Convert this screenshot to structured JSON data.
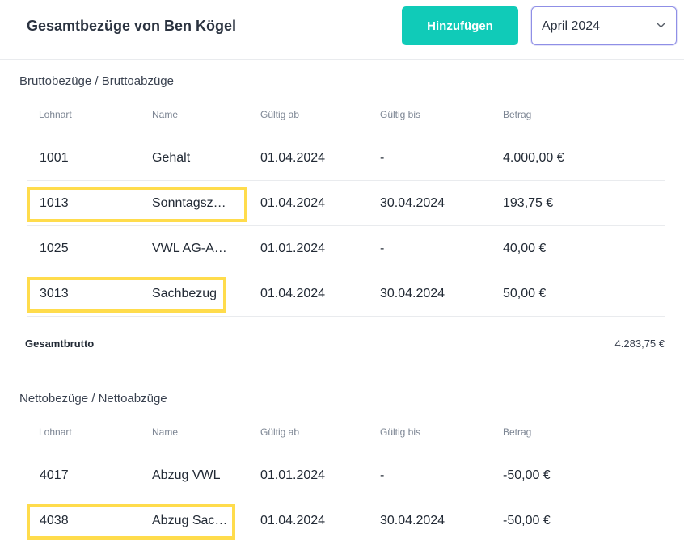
{
  "header": {
    "title": "Gesamtbezüge von Ben Kögel",
    "add_label": "Hinzufügen",
    "month_selected": "April 2024"
  },
  "columns": {
    "lohnart": "Lohnart",
    "name": "Name",
    "gueltig_ab": "Gültig ab",
    "gueltig_bis": "Gültig bis",
    "betrag": "Betrag"
  },
  "brutto": {
    "title": "Bruttobezüge / Bruttoabzüge",
    "rows": [
      {
        "lohnart": "1001",
        "name": "Gehalt",
        "ab": "01.04.2024",
        "bis": "-",
        "betrag": "4.000,00 €"
      },
      {
        "lohnart": "1013",
        "name": "Sonntagszuschlag",
        "ab": "01.04.2024",
        "bis": "30.04.2024",
        "betrag": "193,75 €"
      },
      {
        "lohnart": "1025",
        "name": "VWL AG-Anteil",
        "ab": "01.01.2024",
        "bis": "-",
        "betrag": "40,00 €"
      },
      {
        "lohnart": "3013",
        "name": "Sachbezug",
        "ab": "01.04.2024",
        "bis": "30.04.2024",
        "betrag": "50,00 €"
      }
    ],
    "total_label": "Gesamtbrutto",
    "total_value": "4.283,75 €"
  },
  "netto": {
    "title": "Nettobezüge / Nettoabzüge",
    "rows": [
      {
        "lohnart": "4017",
        "name": "Abzug VWL",
        "ab": "01.01.2024",
        "bis": "-",
        "betrag": "-50,00 €"
      },
      {
        "lohnart": "4038",
        "name": "Abzug Sachbezug",
        "ab": "01.04.2024",
        "bis": "30.04.2024",
        "betrag": "-50,00 €"
      }
    ]
  },
  "highlight_color": "#ffdc4c",
  "accent_color": "#10cbb8",
  "icons": {
    "select_arrow": "chevron-down-icon"
  }
}
